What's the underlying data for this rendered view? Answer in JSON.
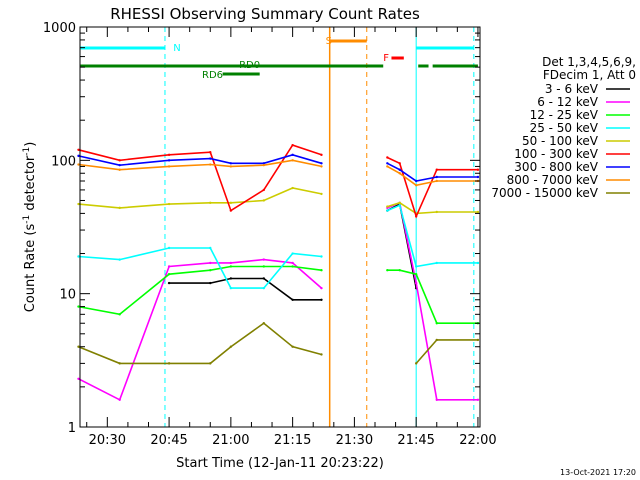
{
  "chart_data": {
    "type": "line",
    "title": "RHESSI Observing Summary Count Rates",
    "xlabel": "Start Time (12-Jan-11 20:23:22)",
    "ylabel_main": "Count Rate (s",
    "ylabel_sup1": "-1",
    "ylabel_mid": " detector",
    "ylabel_sup2": "-1",
    "ylabel_end": ")",
    "yscale": "log",
    "ylim": [
      1,
      1000
    ],
    "xlim": [
      "20:23:22",
      "22:00:30"
    ],
    "x_ticks": [
      "20:30",
      "20:45",
      "21:00",
      "21:15",
      "21:30",
      "21:45",
      "22:00"
    ],
    "y_ticks": [
      "1",
      "10",
      "100",
      "1000"
    ],
    "legend_title_1": "Det 1,3,4,5,6,9,",
    "legend_title_2": "FDecim 1, Att 0",
    "footer": "13-Oct-2021 17:20",
    "flags": [
      {
        "label": "N",
        "color": "#00ffff"
      },
      {
        "label": "S",
        "color": "#ff8c00"
      },
      {
        "label": "F",
        "color": "#ff0000"
      },
      {
        "label": "RD0",
        "color": "#008000"
      },
      {
        "label": "RD6",
        "color": "#008000"
      }
    ],
    "series": [
      {
        "name": "3 - 6 keV",
        "color": "#000000",
        "x": [
          "20:33",
          "20:45",
          "20:55",
          "21:00",
          "21:08",
          "21:15",
          "21:22",
          "21:35",
          "21:38",
          "21:41",
          "21:45",
          "21:50",
          "22:00"
        ],
        "y": [
          null,
          12,
          12,
          13,
          13,
          9,
          9,
          null,
          42,
          47,
          11,
          null,
          null
        ]
      },
      {
        "name": "6 - 12 keV",
        "color": "#ff00ff",
        "x": [
          "20:23",
          "20:33",
          "20:45",
          "20:55",
          "21:00",
          "21:08",
          "21:15",
          "21:22",
          "21:35",
          "21:38",
          "21:41",
          "21:45",
          "21:50",
          "22:00"
        ],
        "y": [
          2.3,
          1.6,
          16,
          17,
          17,
          18,
          17,
          11,
          null,
          44,
          48,
          12,
          1.6,
          1.6
        ]
      },
      {
        "name": "12 - 25 keV",
        "color": "#00ff00",
        "x": [
          "20:23",
          "20:33",
          "20:45",
          "20:55",
          "21:00",
          "21:08",
          "21:15",
          "21:22",
          "21:35",
          "21:38",
          "21:41",
          "21:45",
          "21:50",
          "22:00"
        ],
        "y": [
          8,
          7,
          14,
          15,
          16,
          16,
          16,
          15,
          null,
          15,
          15,
          14,
          6,
          6
        ]
      },
      {
        "name": "25 - 50 keV",
        "color": "#00ffff",
        "x": [
          "20:23",
          "20:33",
          "20:45",
          "20:55",
          "21:00",
          "21:08",
          "21:15",
          "21:22",
          "21:35",
          "21:38",
          "21:41",
          "21:45",
          "21:50",
          "22:00"
        ],
        "y": [
          19,
          18,
          22,
          22,
          11,
          11,
          20,
          19,
          null,
          42,
          46,
          16,
          17,
          17
        ]
      },
      {
        "name": "50 - 100 keV",
        "color": "#cccc00",
        "x": [
          "20:23",
          "20:33",
          "20:45",
          "20:55",
          "21:00",
          "21:08",
          "21:15",
          "21:22",
          "21:35",
          "21:38",
          "21:41",
          "21:45",
          "21:50",
          "22:00"
        ],
        "y": [
          47,
          44,
          47,
          48,
          48,
          50,
          62,
          56,
          null,
          45,
          48,
          40,
          41,
          41
        ]
      },
      {
        "name": "100 - 300 keV",
        "color": "#ff0000",
        "x": [
          "20:23",
          "20:33",
          "20:45",
          "20:55",
          "21:00",
          "21:08",
          "21:15",
          "21:22",
          "21:35",
          "21:38",
          "21:41",
          "21:45",
          "21:50",
          "22:00"
        ],
        "y": [
          120,
          100,
          110,
          115,
          42,
          60,
          130,
          110,
          null,
          105,
          95,
          38,
          85,
          85
        ]
      },
      {
        "name": "300 - 800 keV",
        "color": "#0000ff",
        "x": [
          "20:23",
          "20:33",
          "20:45",
          "20:55",
          "21:00",
          "21:08",
          "21:15",
          "21:22",
          "21:35",
          "21:38",
          "21:41",
          "21:45",
          "21:50",
          "22:00"
        ],
        "y": [
          108,
          92,
          100,
          103,
          95,
          95,
          110,
          95,
          null,
          95,
          85,
          70,
          75,
          75
        ]
      },
      {
        "name": "800 - 7000 keV",
        "color": "#ff8c00",
        "x": [
          "20:23",
          "20:33",
          "20:45",
          "20:55",
          "21:00",
          "21:08",
          "21:15",
          "21:22",
          "21:35",
          "21:38",
          "21:41",
          "21:45",
          "21:50",
          "22:00"
        ],
        "y": [
          93,
          85,
          90,
          93,
          90,
          92,
          100,
          90,
          null,
          90,
          80,
          65,
          70,
          70
        ]
      },
      {
        "name": "7000 - 15000 keV",
        "color": "#808000",
        "x": [
          "20:23",
          "20:33",
          "20:45",
          "20:55",
          "21:00",
          "21:08",
          "21:15",
          "21:22",
          "21:35",
          "21:38",
          "21:41",
          "21:45",
          "21:50",
          "22:00"
        ],
        "y": [
          4,
          3,
          3,
          3,
          4,
          6,
          4,
          3.5,
          null,
          null,
          null,
          3,
          4.5,
          4.5
        ]
      }
    ]
  }
}
